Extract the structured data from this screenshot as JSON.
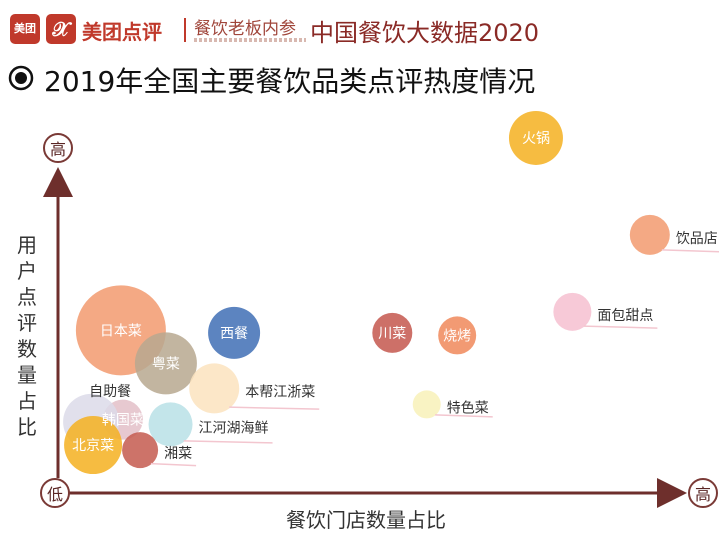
{
  "header": {
    "logo_text": "美团",
    "logo_mark": "𝕏",
    "brand": "美团点评",
    "brand2": "餐饮老板内参",
    "title": "中国餐饮大数据2020"
  },
  "colors": {
    "brand_red": "#c0392b",
    "axis": "#6e2f2c",
    "text": "#333333"
  },
  "icons": {
    "subtitle_icon": "target-icon"
  },
  "chart_data": {
    "type": "scatter",
    "title": "2019年全国主要餐饮品类点评热度情况",
    "xlabel": "餐饮门店数量占比",
    "ylabel": "用户点评数量占比",
    "axis_low_label": "低",
    "axis_high_y": "高",
    "axis_high_x": "高",
    "xlim": [
      0,
      100
    ],
    "ylim": [
      0,
      100
    ],
    "grid": false,
    "legend": "none",
    "points": [
      {
        "name": "火锅",
        "x": 72.2,
        "y": 92.3,
        "size": 27,
        "color": "#f5b020",
        "label_pos": "inside"
      },
      {
        "name": "饮品店",
        "x": 89.4,
        "y": 65.6,
        "size": 20,
        "color": "#f29a6e",
        "label_pos": "right"
      },
      {
        "name": "面包甜点",
        "x": 77.7,
        "y": 44.4,
        "size": 19,
        "color": "#f6bfd0",
        "label_pos": "right"
      },
      {
        "name": "川菜",
        "x": 50.5,
        "y": 38.6,
        "size": 20,
        "color": "#c4574d",
        "label_pos": "inside"
      },
      {
        "name": "烧烤",
        "x": 60.3,
        "y": 37.9,
        "size": 19,
        "color": "#f0885a",
        "label_pos": "inside"
      },
      {
        "name": "特色菜",
        "x": 55.7,
        "y": 18.9,
        "size": 14,
        "color": "#f8f1b8",
        "label_pos": "right"
      },
      {
        "name": "日本菜",
        "x": 9.5,
        "y": 39.3,
        "size": 45,
        "color": "#f29a6e",
        "label_pos": "inside"
      },
      {
        "name": "西餐",
        "x": 26.6,
        "y": 38.6,
        "size": 26,
        "color": "#3f6fb5",
        "label_pos": "inside"
      },
      {
        "name": "粤菜",
        "x": 16.3,
        "y": 30.2,
        "size": 31,
        "color": "#b7a88f",
        "label_pos": "inside"
      },
      {
        "name": "本帮江浙菜",
        "x": 23.6,
        "y": 23.3,
        "size": 25,
        "color": "#fbe3be",
        "label_pos": "right"
      },
      {
        "name": "江河湖海鲜",
        "x": 17.0,
        "y": 13.4,
        "size": 22,
        "color": "#b9e1e6",
        "label_pos": "right"
      },
      {
        "name": "韩国菜",
        "x": 9.8,
        "y": 14.7,
        "size": 20,
        "color": "#e3c0c8",
        "label_pos": "inside"
      },
      {
        "name": "自助餐",
        "x": 5.0,
        "y": 14.1,
        "size": 28,
        "color": "#dcdbe9",
        "label_pos": "top"
      },
      {
        "name": "湘菜",
        "x": 12.4,
        "y": 6.3,
        "size": 18,
        "color": "#c45a4f",
        "label_pos": "right"
      },
      {
        "name": "北京菜",
        "x": 5.3,
        "y": 7.7,
        "size": 29,
        "color": "#f5b020",
        "label_pos": "inside"
      }
    ]
  }
}
